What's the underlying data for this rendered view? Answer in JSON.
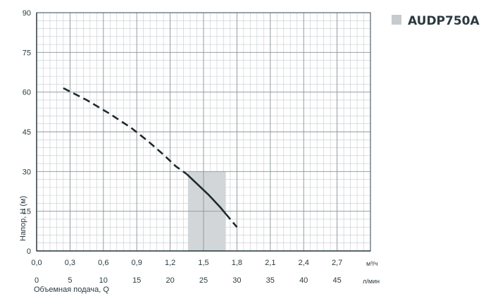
{
  "chart_data": {
    "type": "line",
    "title": "",
    "legend": {
      "label": "AUDP750A",
      "placement": "top-right"
    },
    "ylabel": "Напор, H (м)",
    "xlabel": "Объемная подача, Q",
    "x_unit_primary": "м³/ч",
    "x_unit_secondary": "л/мин",
    "xlim": [
      0,
      3.0
    ],
    "ylim": [
      0,
      90
    ],
    "grid": true,
    "y_ticks": [
      "0",
      "15",
      "30",
      "45",
      "60",
      "75",
      "90"
    ],
    "x_ticks_primary": [
      "0,0",
      "0,3",
      "0,6",
      "0,9",
      "1,2",
      "1,5",
      "1,8",
      "2,1",
      "2,4",
      "2,7"
    ],
    "x_ticks_secondary": [
      "0",
      "5",
      "10",
      "15",
      "20",
      "25",
      "30",
      "35",
      "40",
      "45"
    ],
    "series": [
      {
        "style": "dashed",
        "x": [
          0.24,
          0.45,
          0.65,
          0.85,
          1.0,
          1.15,
          1.25,
          1.35
        ],
        "y": [
          61.5,
          57,
          52,
          46.5,
          41.5,
          36,
          32,
          29
        ]
      },
      {
        "style": "solid",
        "x": [
          1.35,
          1.45,
          1.55,
          1.65,
          1.7
        ],
        "y": [
          29,
          25,
          21,
          16.5,
          14
        ]
      },
      {
        "style": "dashed",
        "x": [
          1.7,
          1.8
        ],
        "y": [
          14,
          9
        ]
      }
    ],
    "recommended_range": {
      "x": [
        1.36,
        1.7
      ]
    },
    "colors": {
      "curve": "#1c2a30",
      "grid_major": "#8c9599",
      "grid_minor": "#c4cacd",
      "band": "#d3d6d8",
      "text": "#2b3a40",
      "legend_box": "#c8cbcd"
    }
  }
}
